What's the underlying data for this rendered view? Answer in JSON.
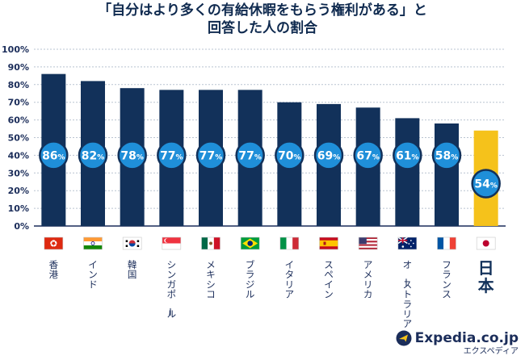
{
  "title_line1": "「自分はより多くの有給休暇をもらう権利がある」と",
  "title_line2": "回答した人の割合",
  "chart_data": {
    "type": "bar",
    "categories": [
      "香港",
      "インド",
      "韓国",
      "シンガポール",
      "メキシコ",
      "ブラジル",
      "イタリア",
      "スペイン",
      "アメリカ",
      "オーストラリア",
      "フランス",
      "日本"
    ],
    "values": [
      86,
      82,
      78,
      77,
      77,
      77,
      70,
      69,
      67,
      61,
      58,
      54
    ],
    "value_unit": "%",
    "yticks": [
      "100%",
      "90%",
      "80%",
      "70%",
      "60%",
      "50%",
      "40%",
      "30%",
      "20%",
      "10%",
      "0%"
    ],
    "ylim": [
      0,
      100
    ],
    "grid": true,
    "bar_color": "#12315a",
    "highlight_color": "#f5c21b",
    "highlight_category": "日本",
    "label_circle_color": "#1f8fd9",
    "flag_icons": [
      "flag-hongkong-icon",
      "flag-india-icon",
      "flag-korea-icon",
      "flag-singapore-icon",
      "flag-mexico-icon",
      "flag-brazil-icon",
      "flag-italy-icon",
      "flag-spain-icon",
      "flag-usa-icon",
      "flag-australia-icon",
      "flag-france-icon",
      "flag-japan-icon"
    ]
  },
  "logo": {
    "name": "Expedia.co.jp",
    "subtitle": "エクスペディア"
  }
}
